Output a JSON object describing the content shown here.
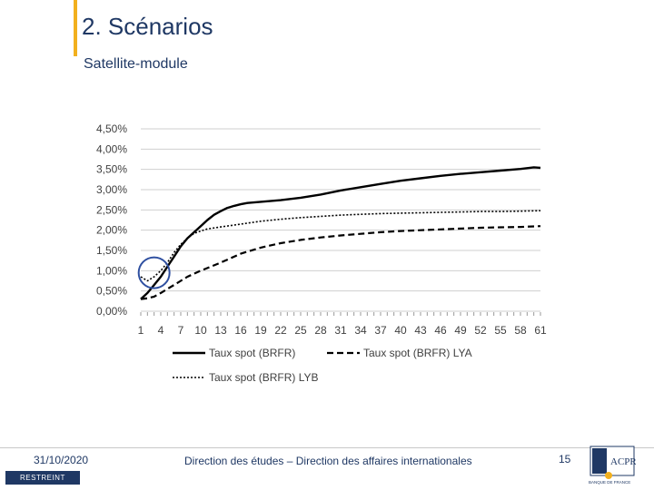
{
  "header": {
    "title": "2. Scénarios",
    "subtitle": "Satellite-module"
  },
  "footer": {
    "date": "31/10/2020",
    "center_text": "Direction des études – Direction des affaires internationales",
    "page_number": "15",
    "classification": "RESTREINT",
    "logo_text": "ACPR",
    "logo_subtext": "BANQUE DE FRANCE"
  },
  "colors": {
    "title": "#1f3864",
    "accent": "#f2b01e",
    "highlight_circle": "#2e4fa0"
  },
  "chart_data": {
    "type": "line",
    "y_ticks": [
      "4,50%",
      "4,00%",
      "3,50%",
      "3,00%",
      "2,50%",
      "2,00%",
      "1,50%",
      "1,00%",
      "0,50%",
      "0,00%"
    ],
    "ylim": [
      0,
      4.5
    ],
    "xlim": [
      1,
      61
    ],
    "x_tick_labels": [
      "1",
      "4",
      "7",
      "10",
      "13",
      "16",
      "19",
      "22",
      "25",
      "28",
      "31",
      "34",
      "37",
      "40",
      "43",
      "46",
      "49",
      "52",
      "55",
      "58",
      "61"
    ],
    "grid": true,
    "legend": [
      "Taux spot (BRFR)",
      "Taux spot (BRFR) LYA",
      "Taux spot (BRFR) LYB"
    ],
    "series": [
      {
        "name": "Taux spot (BRFR)",
        "style": "solid",
        "points": [
          [
            1,
            0.3
          ],
          [
            2,
            0.45
          ],
          [
            3,
            0.65
          ],
          [
            4,
            0.85
          ],
          [
            5,
            1.1
          ],
          [
            6,
            1.35
          ],
          [
            7,
            1.6
          ],
          [
            8,
            1.8
          ],
          [
            9,
            1.95
          ],
          [
            10,
            2.1
          ],
          [
            11,
            2.25
          ],
          [
            12,
            2.38
          ],
          [
            13,
            2.47
          ],
          [
            14,
            2.55
          ],
          [
            15,
            2.6
          ],
          [
            16,
            2.64
          ],
          [
            17,
            2.67
          ],
          [
            19,
            2.7
          ],
          [
            22,
            2.74
          ],
          [
            25,
            2.8
          ],
          [
            28,
            2.88
          ],
          [
            31,
            2.98
          ],
          [
            34,
            3.06
          ],
          [
            37,
            3.14
          ],
          [
            40,
            3.22
          ],
          [
            43,
            3.28
          ],
          [
            46,
            3.34
          ],
          [
            49,
            3.39
          ],
          [
            52,
            3.43
          ],
          [
            55,
            3.47
          ],
          [
            58,
            3.51
          ],
          [
            60,
            3.55
          ],
          [
            61,
            3.54
          ]
        ]
      },
      {
        "name": "Taux spot (BRFR) LYA",
        "style": "dashed",
        "points": [
          [
            1,
            0.3
          ],
          [
            2,
            0.32
          ],
          [
            3,
            0.36
          ],
          [
            4,
            0.45
          ],
          [
            5,
            0.55
          ],
          [
            6,
            0.65
          ],
          [
            7,
            0.75
          ],
          [
            8,
            0.85
          ],
          [
            10,
            1.0
          ],
          [
            13,
            1.2
          ],
          [
            16,
            1.42
          ],
          [
            19,
            1.57
          ],
          [
            22,
            1.68
          ],
          [
            25,
            1.76
          ],
          [
            28,
            1.82
          ],
          [
            31,
            1.87
          ],
          [
            34,
            1.91
          ],
          [
            37,
            1.95
          ],
          [
            40,
            1.98
          ],
          [
            43,
            2.0
          ],
          [
            46,
            2.02
          ],
          [
            49,
            2.04
          ],
          [
            52,
            2.06
          ],
          [
            55,
            2.07
          ],
          [
            58,
            2.08
          ],
          [
            61,
            2.1
          ]
        ]
      },
      {
        "name": "Taux spot (BRFR) LYB",
        "style": "dotted",
        "points": [
          [
            1,
            0.85
          ],
          [
            2,
            0.75
          ],
          [
            3,
            0.85
          ],
          [
            4,
            1.0
          ],
          [
            5,
            1.2
          ],
          [
            6,
            1.45
          ],
          [
            7,
            1.65
          ],
          [
            8,
            1.8
          ],
          [
            9,
            1.92
          ],
          [
            10,
            1.98
          ],
          [
            11,
            2.03
          ],
          [
            13,
            2.08
          ],
          [
            16,
            2.15
          ],
          [
            19,
            2.22
          ],
          [
            22,
            2.27
          ],
          [
            25,
            2.31
          ],
          [
            28,
            2.34
          ],
          [
            31,
            2.37
          ],
          [
            34,
            2.39
          ],
          [
            37,
            2.41
          ],
          [
            40,
            2.42
          ],
          [
            43,
            2.43
          ],
          [
            46,
            2.44
          ],
          [
            49,
            2.45
          ],
          [
            52,
            2.46
          ],
          [
            55,
            2.46
          ],
          [
            58,
            2.47
          ],
          [
            61,
            2.48
          ]
        ]
      }
    ],
    "highlight": {
      "x": 3,
      "y": 0.95
    }
  }
}
